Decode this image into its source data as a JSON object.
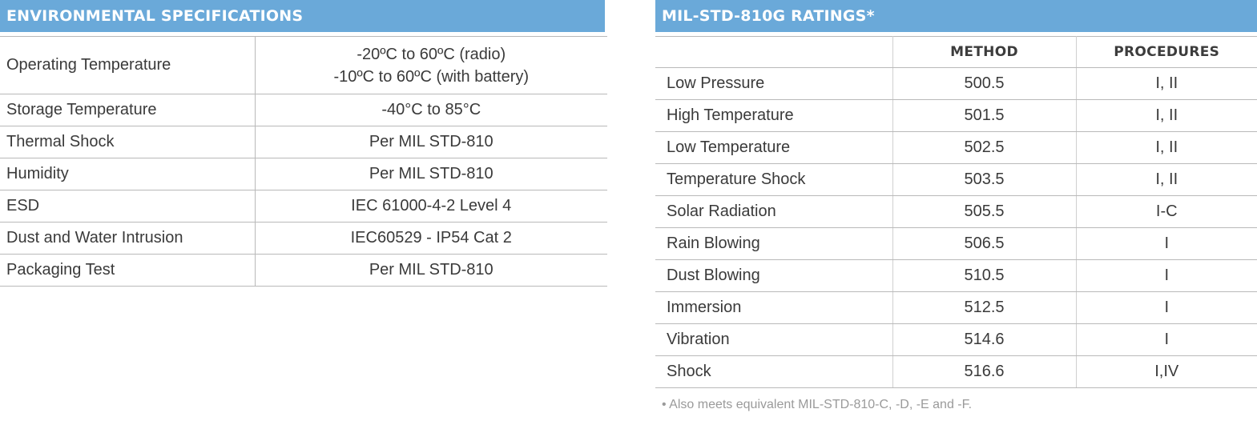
{
  "environmental": {
    "title": "ENVIRONMENTAL SPECIFICATIONS",
    "rows": [
      {
        "label": "Operating Temperature",
        "values": [
          "-20ºC to 60ºC (radio)",
          "-10ºC to 60ºC (with battery)"
        ]
      },
      {
        "label": "Storage Temperature",
        "values": [
          "-40°C to 85°C"
        ]
      },
      {
        "label": "Thermal Shock",
        "values": [
          "Per MIL STD-810"
        ]
      },
      {
        "label": "Humidity",
        "values": [
          "Per MIL STD-810"
        ]
      },
      {
        "label": "ESD",
        "values": [
          "IEC 61000-4-2 Level 4"
        ]
      },
      {
        "label": "Dust and Water Intrusion",
        "values": [
          "IEC60529 - IP54 Cat 2"
        ]
      },
      {
        "label": "Packaging Test",
        "values": [
          "Per MIL STD-810"
        ]
      }
    ]
  },
  "mil_std": {
    "title": "MIL-STD-810G RATINGS*",
    "headers": {
      "method": "METHOD",
      "procedures": "PROCEDURES"
    },
    "rows": [
      {
        "name": "Low Pressure",
        "method": "500.5",
        "procedures": "I, II"
      },
      {
        "name": "High Temperature",
        "method": "501.5",
        "procedures": "I, II"
      },
      {
        "name": "Low Temperature",
        "method": "502.5",
        "procedures": "I, II"
      },
      {
        "name": "Temperature Shock",
        "method": "503.5",
        "procedures": "I, II"
      },
      {
        "name": "Solar Radiation",
        "method": "505.5",
        "procedures": "I-C"
      },
      {
        "name": "Rain Blowing",
        "method": "506.5",
        "procedures": "I"
      },
      {
        "name": "Dust Blowing",
        "method": "510.5",
        "procedures": "I"
      },
      {
        "name": "Immersion",
        "method": "512.5",
        "procedures": "I"
      },
      {
        "name": "Vibration",
        "method": "514.6",
        "procedures": "I"
      },
      {
        "name": "Shock",
        "method": "516.6",
        "procedures": "I,IV"
      }
    ],
    "footnote": "• Also meets equivalent MIL-STD-810-C, -D, -E and -F."
  },
  "colors": {
    "header_bg": "#6aa9d9",
    "header_text": "#ffffff",
    "rule": "#b9b9b9"
  }
}
